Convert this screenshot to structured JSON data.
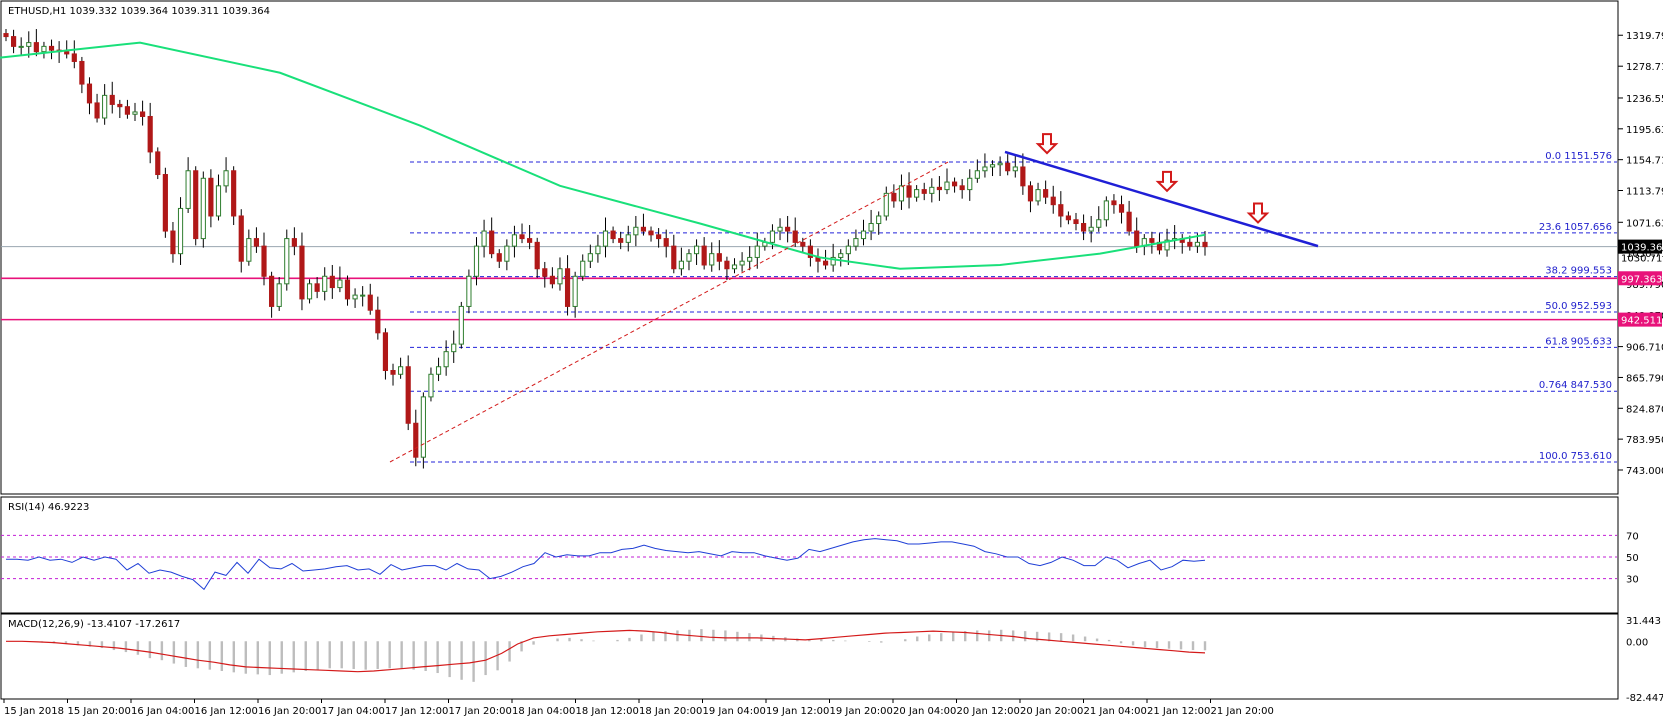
{
  "instrument": {
    "header": "ETHUSD,H1  1039.332 1039.364 1039.311 1039.364",
    "current_price_label": "1039.364",
    "hidden_tick_label": "1030.710"
  },
  "colors": {
    "up_candle": "#2e7d2e",
    "down_candle": "#b01818",
    "wick": "#000000",
    "moving_average": "#19e07a",
    "trend_line": "#1f1fd6",
    "fib_lines": "#2323d9",
    "support_lines": "#e8127a",
    "arrows": "#d31a1a",
    "rsi_line": "#1f3fd6",
    "macd_hist": "#bdbdbd",
    "macd_signal": "#d41a1a",
    "level_guides": "#c21fd6"
  },
  "chart_data": [
    {
      "type": "candlestick",
      "panel": "price",
      "series": [
        {
          "name": "ETHUSD,H1",
          "kind": "candles",
          "note_values": "close path sampled per candle",
          "closes": [
            1318,
            1305,
            1305,
            1310,
            1298,
            1305,
            1300,
            1298,
            1295,
            1285,
            1255,
            1230,
            1210,
            1240,
            1228,
            1225,
            1215,
            1218,
            1212,
            1165,
            1135,
            1060,
            1030,
            1090,
            1140,
            1050,
            1130,
            1080,
            1120,
            1140,
            1080,
            1020,
            1050,
            1040,
            1000,
            960,
            990,
            1050,
            1040,
            970,
            990,
            980,
            1000,
            985,
            995,
            970,
            975,
            975,
            955,
            925,
            875,
            870,
            880,
            805,
            760,
            840,
            870,
            880,
            900,
            910,
            960,
            1000,
            1040,
            1060,
            1030,
            1020,
            1040,
            1055,
            1050,
            1045,
            1010,
            1000,
            990,
            1010,
            960,
            1000,
            1020,
            1030,
            1040,
            1060,
            1050,
            1045,
            1055,
            1065,
            1060,
            1055,
            1050,
            1040,
            1010,
            1020,
            1030,
            1040,
            1015,
            1030,
            1020,
            1010,
            1015,
            1020,
            1025,
            1040,
            1045,
            1060,
            1065,
            1060,
            1045,
            1040,
            1025,
            1020,
            1015,
            1025,
            1030,
            1040,
            1050,
            1060,
            1070,
            1080,
            1110,
            1100,
            1120,
            1105,
            1115,
            1110,
            1118,
            1115,
            1125,
            1120,
            1115,
            1130,
            1140,
            1145,
            1148,
            1150,
            1140,
            1145,
            1120,
            1100,
            1115,
            1105,
            1095,
            1080,
            1075,
            1070,
            1060,
            1065,
            1075,
            1100,
            1095,
            1085,
            1060,
            1040,
            1050,
            1045,
            1035,
            1048,
            1050,
            1045,
            1040,
            1045,
            1039.364
          ]
        },
        {
          "name": "MA",
          "kind": "line",
          "points": [
            [
              0,
              1290
            ],
            [
              140,
              1310
            ],
            [
              280,
              1270
            ],
            [
              420,
              1200
            ],
            [
              560,
              1120
            ],
            [
              700,
              1070
            ],
            [
              820,
              1025
            ],
            [
              900,
              1010
            ],
            [
              1000,
              1015
            ],
            [
              1100,
              1030
            ],
            [
              1205,
              1055
            ]
          ]
        }
      ],
      "y_axis": {
        "ticks": [
          "1319.790",
          "1278.710",
          "1236.550",
          "1195.630",
          "1154.710",
          "1113.790",
          "1071.630",
          "1030.710",
          "989.790",
          "948.870",
          "906.710",
          "865.790",
          "824.870",
          "783.950",
          "743.000"
        ],
        "ylim": [
          743.0,
          1340.0
        ]
      },
      "fibonacci": [
        {
          "level": "0.0",
          "value": "1151.576",
          "price": 1151.576
        },
        {
          "level": "23.6",
          "value": "1057.656",
          "price": 1057.656
        },
        {
          "level": "38.2",
          "value": "999.553",
          "price": 999.553
        },
        {
          "level": "50.0",
          "value": "952.593",
          "price": 952.593
        },
        {
          "level": "61.8",
          "value": "905.633",
          "price": 905.633
        },
        {
          "level": "0.764",
          "value": "847.530",
          "price": 847.53
        },
        {
          "level": "100.0",
          "value": "753.610",
          "price": 753.61
        }
      ],
      "horizontal_lines": [
        {
          "label": "997.363",
          "price": 997.363
        },
        {
          "label": "942.511",
          "price": 942.511
        }
      ],
      "current_price": 1039.364,
      "trendline": {
        "from_price": 1165,
        "to_price": 1040
      },
      "diagonal": {
        "from_price": 753.61,
        "to_price": 1151.576
      }
    },
    {
      "type": "line",
      "panel": "rsi",
      "title": "RSI(14) 46.9223",
      "ylim": [
        0,
        100
      ],
      "y_ticks": [
        "70",
        "50",
        "30"
      ],
      "levels": [
        70,
        50,
        30
      ],
      "values": [
        48,
        48,
        47,
        50,
        47,
        48,
        45,
        50,
        47,
        50,
        48,
        38,
        44,
        35,
        38,
        36,
        32,
        29,
        20,
        36,
        33,
        45,
        35,
        48,
        40,
        39,
        44,
        37,
        38,
        39,
        41,
        42,
        38,
        39,
        34,
        43,
        38,
        40,
        42,
        42,
        38,
        44,
        39,
        38,
        30,
        32,
        36,
        41,
        44,
        54,
        50,
        52,
        51,
        51,
        54,
        54,
        57,
        58,
        61,
        58,
        56,
        55,
        54,
        55,
        53,
        51,
        55,
        54,
        54,
        51,
        49,
        47,
        49,
        57,
        55,
        58,
        61,
        64,
        66,
        67,
        66,
        65,
        62,
        62,
        63,
        64,
        64,
        62,
        60,
        55,
        53,
        50,
        50,
        44,
        42,
        45,
        50,
        47,
        42,
        42,
        50,
        47,
        40,
        44,
        47,
        38,
        41,
        47,
        46,
        46.9223
      ]
    },
    {
      "type": "bar",
      "panel": "macd",
      "title": "MACD(12,26,9) -13.4107 -17.2617",
      "ylim": [
        -82.4472,
        31.443
      ],
      "y_ticks": [
        "31.443",
        "0.00",
        "-82.4472"
      ],
      "values": [
        0,
        0,
        -1,
        -2,
        -3,
        -4,
        -6,
        -8,
        -10,
        -13,
        -16,
        -20,
        -25,
        -28,
        -33,
        -38,
        -40,
        -42,
        -44,
        -46,
        -48,
        -49,
        -50,
        -48,
        -46,
        -44,
        -42,
        -40,
        -40,
        -41,
        -42,
        -41,
        -40,
        -41,
        -42,
        -44,
        -47,
        -53,
        -57,
        -60,
        -50,
        -43,
        -30,
        -15,
        -5,
        0,
        4,
        5,
        3,
        1,
        0,
        2,
        5,
        10,
        14,
        15,
        16,
        17,
        18,
        17,
        16,
        14,
        12,
        10,
        8,
        6,
        4,
        3,
        3,
        2,
        1,
        0,
        -1,
        -2,
        0,
        3,
        7,
        10,
        12,
        14,
        15,
        16,
        16,
        17,
        16,
        15,
        14,
        13,
        12,
        10,
        7,
        4,
        2,
        -3,
        -6,
        -9,
        -10,
        -11,
        -12,
        -13,
        -13.4107
      ],
      "signal": [
        0,
        0,
        -1,
        -2,
        -4,
        -6,
        -8,
        -10,
        -13,
        -16,
        -20,
        -24,
        -28,
        -31,
        -35,
        -38,
        -39,
        -40,
        -41,
        -42,
        -43,
        -44,
        -45,
        -44,
        -42,
        -40,
        -38,
        -36,
        -34,
        -32,
        -28,
        -18,
        -4,
        5,
        8,
        10,
        12,
        14,
        15,
        16,
        15,
        13,
        10,
        8,
        6,
        5,
        5,
        5,
        4,
        3,
        2,
        4,
        6,
        8,
        10,
        12,
        13,
        14,
        15,
        14,
        13,
        11,
        9,
        7,
        4,
        2,
        0,
        -2,
        -4,
        -6,
        -8,
        -10,
        -12,
        -14,
        -16,
        -17.2617
      ]
    }
  ],
  "x_axis": {
    "labels": [
      "15 Jan 2018",
      "15 Jan 20:00",
      "16 Jan 04:00",
      "16 Jan 12:00",
      "16 Jan 20:00",
      "17 Jan 04:00",
      "17 Jan 12:00",
      "17 Jan 20:00",
      "18 Jan 04:00",
      "18 Jan 12:00",
      "18 Jan 20:00",
      "19 Jan 04:00",
      "19 Jan 12:00",
      "19 Jan 20:00",
      "20 Jan 04:00",
      "20 Jan 12:00",
      "20 Jan 20:00",
      "21 Jan 04:00",
      "21 Jan 12:00",
      "21 Jan 20:00"
    ]
  }
}
